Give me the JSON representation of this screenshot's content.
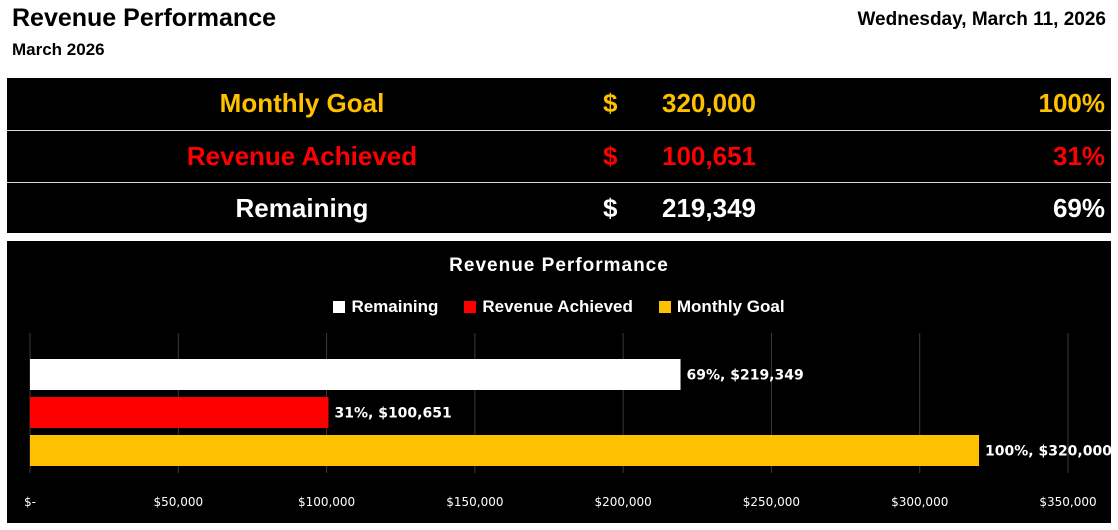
{
  "header": {
    "title": "Revenue Performance",
    "subtitle": "March 2026",
    "date": "Wednesday, March 11, 2026"
  },
  "summary": {
    "rows": [
      {
        "label": "Monthly Goal",
        "currency": "$",
        "amount": "320,000",
        "percent": "100%",
        "color": "#ffc000"
      },
      {
        "label": "Revenue Achieved",
        "currency": "$",
        "amount": "100,651",
        "percent": "31%",
        "color": "#ff0000"
      },
      {
        "label": "Remaining",
        "currency": "$",
        "amount": "219,349",
        "percent": "69%",
        "color": "#ffffff"
      }
    ]
  },
  "chart_data": {
    "type": "bar",
    "orientation": "horizontal",
    "title": "Revenue Performance",
    "legend_position": "top",
    "grid": true,
    "xlim": [
      0,
      350000
    ],
    "x_ticks": [
      {
        "value": 0,
        "label": "$-"
      },
      {
        "value": 50000,
        "label": "$50,000"
      },
      {
        "value": 100000,
        "label": "$100,000"
      },
      {
        "value": 150000,
        "label": "$150,000"
      },
      {
        "value": 200000,
        "label": "$200,000"
      },
      {
        "value": 250000,
        "label": "$250,000"
      },
      {
        "value": 300000,
        "label": "$300,000"
      },
      {
        "value": 350000,
        "label": "$350,000"
      }
    ],
    "legend": [
      {
        "name": "Remaining",
        "color": "#ffffff"
      },
      {
        "name": "Revenue Achieved",
        "color": "#ff0000"
      },
      {
        "name": "Monthly Goal",
        "color": "#ffc000"
      }
    ],
    "series": [
      {
        "name": "Remaining",
        "value": 219349,
        "color": "#ffffff",
        "data_label": "69%,  $219,349"
      },
      {
        "name": "Revenue Achieved",
        "value": 100651,
        "color": "#ff0000",
        "data_label": "31%,  $100,651"
      },
      {
        "name": "Monthly Goal",
        "value": 320000,
        "color": "#ffc000",
        "data_label": "100%,  $320,000"
      }
    ]
  }
}
